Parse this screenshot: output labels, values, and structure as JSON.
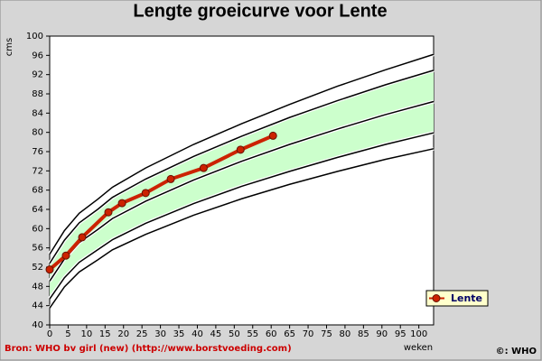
{
  "chart_data": {
    "type": "line",
    "title": "Lengte groeicurve voor Lente",
    "y_label": "cms",
    "x_label": "weken",
    "source": "Bron: WHO bv girl (new) (http://www.borstvoeding.com)",
    "copyright": "©: WHO",
    "xlim": [
      0,
      104
    ],
    "ylim": [
      40,
      100
    ],
    "xticks": [
      0,
      5,
      10,
      15,
      20,
      25,
      30,
      35,
      40,
      45,
      50,
      55,
      60,
      65,
      70,
      75,
      80,
      85,
      90,
      95,
      100
    ],
    "yticks": [
      40,
      44,
      48,
      52,
      56,
      60,
      64,
      68,
      72,
      76,
      80,
      84,
      88,
      92,
      96,
      100
    ],
    "legend": "right",
    "band_color": "#ccffcc",
    "curve_color": "#000000",
    "curves_x": [
      0,
      4,
      8,
      13,
      17,
      26,
      39,
      52,
      65,
      78,
      91,
      104
    ],
    "curves": [
      {
        "values": [
          54.7,
          59.6,
          63.2,
          66.1,
          68.6,
          72.6,
          77.5,
          81.8,
          85.8,
          89.6,
          93.0,
          96.2
        ]
      },
      {
        "values": [
          52.8,
          57.6,
          61.2,
          64.0,
          66.5,
          70.3,
          75.0,
          79.2,
          83.1,
          86.6,
          89.9,
          92.9
        ]
      },
      {
        "values": [
          49.1,
          53.7,
          57.1,
          59.8,
          62.1,
          65.7,
          70.1,
          74.0,
          77.5,
          80.7,
          83.7,
          86.4
        ]
      },
      {
        "values": [
          45.4,
          49.8,
          53.0,
          55.6,
          57.7,
          61.1,
          65.2,
          68.8,
          71.9,
          74.8,
          77.5,
          79.9
        ]
      },
      {
        "values": [
          43.5,
          47.9,
          51.0,
          53.5,
          55.6,
          58.8,
          62.8,
          66.2,
          69.2,
          71.9,
          74.4,
          76.6
        ]
      }
    ],
    "band": [
      1,
      3
    ],
    "series": [
      {
        "name": "Lente",
        "color": "#cc2200",
        "x": [
          0,
          4.4,
          8.8,
          15.9,
          19.6,
          26,
          32.8,
          41.7,
          51.7,
          60.5
        ],
        "values": [
          51.5,
          54.4,
          58.2,
          63.4,
          65.3,
          67.4,
          70.3,
          72.6,
          76.4,
          79.3
        ]
      }
    ]
  }
}
